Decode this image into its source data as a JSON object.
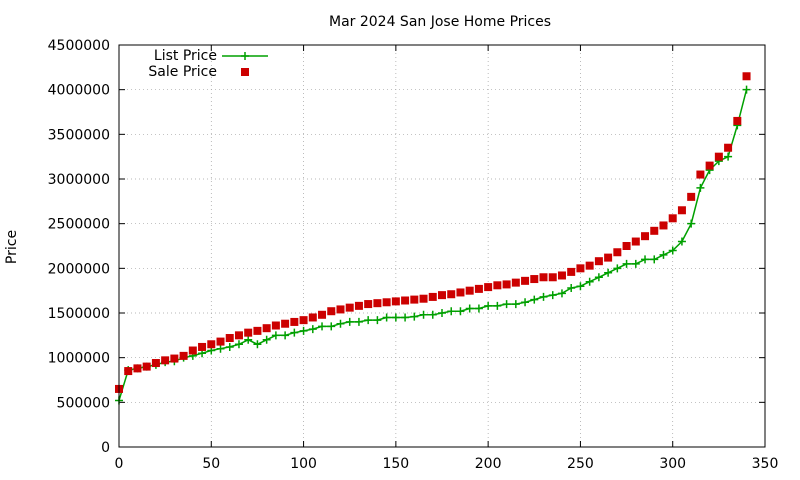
{
  "chart_data": {
    "type": "line",
    "title": "Mar 2024 San Jose Home Prices",
    "xlabel": "",
    "ylabel": "Price",
    "xlim": [
      0,
      350
    ],
    "ylim": [
      0,
      4500000
    ],
    "xticks": [
      "0",
      "50",
      "100",
      "150",
      "200",
      "250",
      "300",
      "350"
    ],
    "yticks": [
      "0",
      "500000",
      "1000000",
      "1500000",
      "2000000",
      "2500000",
      "3000000",
      "3500000",
      "4000000",
      "4500000"
    ],
    "grid": true,
    "legend_position": "top-left",
    "series": [
      {
        "name": "List Price",
        "style": "linespoints",
        "marker": "plus",
        "color": "#00a000",
        "x": [
          0,
          5,
          10,
          15,
          20,
          25,
          30,
          35,
          40,
          45,
          50,
          55,
          60,
          65,
          70,
          75,
          80,
          85,
          90,
          95,
          100,
          105,
          110,
          115,
          120,
          125,
          130,
          135,
          140,
          145,
          150,
          155,
          160,
          165,
          170,
          175,
          180,
          185,
          190,
          195,
          200,
          205,
          210,
          215,
          220,
          225,
          230,
          235,
          240,
          245,
          250,
          255,
          260,
          265,
          270,
          275,
          280,
          285,
          290,
          295,
          300,
          305,
          310,
          315,
          320,
          325,
          330,
          335,
          340
        ],
        "values": [
          520000,
          860000,
          880000,
          900000,
          920000,
          950000,
          960000,
          1000000,
          1020000,
          1050000,
          1080000,
          1100000,
          1120000,
          1150000,
          1200000,
          1150000,
          1200000,
          1250000,
          1250000,
          1280000,
          1300000,
          1320000,
          1350000,
          1350000,
          1380000,
          1400000,
          1400000,
          1420000,
          1420000,
          1450000,
          1450000,
          1450000,
          1460000,
          1480000,
          1480000,
          1500000,
          1520000,
          1520000,
          1550000,
          1550000,
          1580000,
          1580000,
          1600000,
          1600000,
          1620000,
          1650000,
          1680000,
          1700000,
          1720000,
          1780000,
          1800000,
          1850000,
          1900000,
          1950000,
          2000000,
          2050000,
          2050000,
          2100000,
          2100000,
          2150000,
          2200000,
          2300000,
          2500000,
          2900000,
          3100000,
          3200000,
          3250000,
          3600000,
          4000000
        ]
      },
      {
        "name": "Sale Price",
        "style": "points",
        "marker": "square",
        "color": "#cc0000",
        "x": [
          0,
          5,
          10,
          15,
          20,
          25,
          30,
          35,
          40,
          45,
          50,
          55,
          60,
          65,
          70,
          75,
          80,
          85,
          90,
          95,
          100,
          105,
          110,
          115,
          120,
          125,
          130,
          135,
          140,
          145,
          150,
          155,
          160,
          165,
          170,
          175,
          180,
          185,
          190,
          195,
          200,
          205,
          210,
          215,
          220,
          225,
          230,
          235,
          240,
          245,
          250,
          255,
          260,
          265,
          270,
          275,
          280,
          285,
          290,
          295,
          300,
          305,
          310,
          315,
          320,
          325,
          330,
          335,
          340
        ],
        "values": [
          650000,
          850000,
          880000,
          900000,
          940000,
          970000,
          990000,
          1020000,
          1080000,
          1120000,
          1150000,
          1180000,
          1220000,
          1250000,
          1280000,
          1300000,
          1330000,
          1360000,
          1380000,
          1400000,
          1420000,
          1450000,
          1480000,
          1520000,
          1540000,
          1560000,
          1580000,
          1600000,
          1610000,
          1620000,
          1630000,
          1640000,
          1650000,
          1660000,
          1680000,
          1700000,
          1710000,
          1730000,
          1750000,
          1770000,
          1790000,
          1810000,
          1820000,
          1840000,
          1860000,
          1880000,
          1900000,
          1900000,
          1920000,
          1960000,
          2000000,
          2030000,
          2080000,
          2120000,
          2180000,
          2250000,
          2300000,
          2360000,
          2420000,
          2480000,
          2560000,
          2650000,
          2800000,
          3050000,
          3150000,
          3250000,
          3350000,
          3650000,
          4150000
        ]
      }
    ]
  }
}
